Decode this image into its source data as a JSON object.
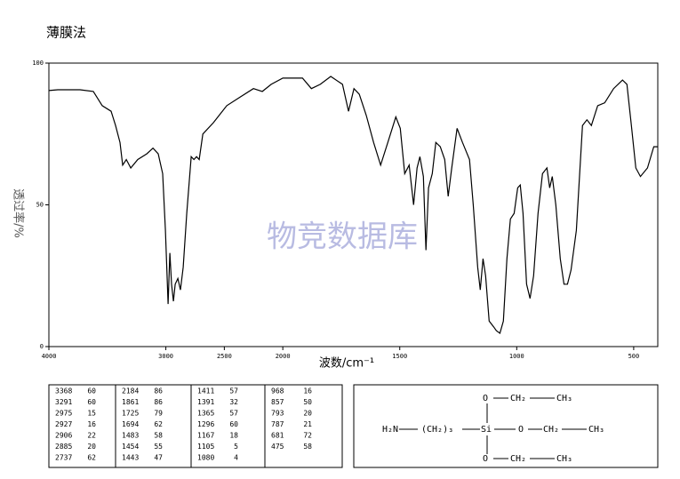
{
  "chart_data": {
    "type": "line",
    "title": "薄膜法",
    "watermark": "物竞数据库",
    "xlabel": "波数/cm⁻¹",
    "ylabel": "透过率/%",
    "xlim": [
      4000,
      397
    ],
    "xticks": [
      4000,
      3000,
      2500,
      2000,
      1500,
      1000,
      500
    ],
    "xaxis_scale_change": 2000,
    "ylim": [
      0,
      100
    ],
    "yticks": [
      0,
      50,
      100
    ],
    "color": "#000000",
    "x": [
      4000,
      3924,
      3734,
      3620,
      3544,
      3468,
      3430,
      3392,
      3369,
      3338,
      3300,
      3240,
      3163,
      3110,
      3065,
      3027,
      3004,
      2981,
      2966,
      2951,
      2935,
      2920,
      2897,
      2875,
      2852,
      2821,
      2783,
      2760,
      2738,
      2715,
      2684,
      2593,
      2479,
      2365,
      2251,
      2175,
      2099,
      2000,
      1916,
      1878,
      1840,
      1795,
      1745,
      1719,
      1696,
      1673,
      1643,
      1612,
      1582,
      1551,
      1517,
      1498,
      1479,
      1460,
      1441,
      1426,
      1414,
      1399,
      1388,
      1377,
      1361,
      1346,
      1327,
      1308,
      1293,
      1278,
      1255,
      1232,
      1202,
      1186,
      1167,
      1156,
      1144,
      1133,
      1118,
      1099,
      1087,
      1072,
      1057,
      1042,
      1027,
      1011,
      996,
      985,
      973,
      958,
      943,
      928,
      909,
      890,
      871,
      859,
      848,
      833,
      814,
      798,
      783,
      768,
      745,
      719,
      700,
      681,
      654,
      624,
      586,
      548,
      529,
      510,
      491,
      471,
      441,
      414,
      397
    ],
    "values": [
      90.3,
      90.6,
      90.6,
      90,
      85,
      83,
      78,
      72,
      64,
      66,
      63,
      66,
      68,
      70,
      68,
      61,
      41,
      15,
      33,
      22,
      16,
      22,
      24,
      20,
      28,
      47,
      67,
      66,
      67,
      66,
      75,
      79,
      85,
      88,
      91,
      90,
      92.5,
      94.7,
      94.7,
      91,
      92.5,
      95.3,
      92.5,
      83,
      91,
      89,
      81.5,
      72,
      64,
      72,
      81,
      77,
      61,
      64,
      50,
      63,
      67,
      60,
      34,
      56,
      61,
      72,
      70.5,
      66,
      53,
      63,
      77,
      72,
      66,
      50,
      28,
      20,
      31,
      25,
      9,
      7,
      5.6,
      4.7,
      9,
      31,
      45,
      47,
      56,
      57,
      47,
      22,
      17,
      25,
      47,
      61,
      63,
      56,
      60,
      50,
      31,
      22,
      22,
      27,
      41,
      78,
      80,
      78,
      85,
      86,
      91,
      94,
      92.5,
      78,
      63,
      60,
      63,
      70.5,
      70.5
    ]
  },
  "peak_table": {
    "columns": [
      [
        [
          3368,
          60
        ],
        [
          3291,
          60
        ],
        [
          2975,
          15
        ],
        [
          2927,
          16
        ],
        [
          2906,
          22
        ],
        [
          2885,
          20
        ],
        [
          2737,
          62
        ]
      ],
      [
        [
          2184,
          86
        ],
        [
          1861,
          86
        ],
        [
          1725,
          79
        ],
        [
          1694,
          62
        ],
        [
          1483,
          58
        ],
        [
          1454,
          55
        ],
        [
          1443,
          47
        ]
      ],
      [
        [
          1411,
          57
        ],
        [
          1391,
          32
        ],
        [
          1365,
          57
        ],
        [
          1296,
          60
        ],
        [
          1167,
          18
        ],
        [
          1105,
          5
        ],
        [
          1080,
          4
        ]
      ],
      [
        [
          968,
          16
        ],
        [
          857,
          50
        ],
        [
          793,
          20
        ],
        [
          787,
          21
        ],
        [
          681,
          72
        ],
        [
          475,
          58
        ]
      ]
    ]
  },
  "structure": {
    "atoms": [
      "H₂N",
      "(CH₂)₃",
      "Si",
      "O",
      "CH₂",
      "CH₃",
      "O",
      "CH₂",
      "CH₃",
      "O",
      "CH₂",
      "CH₃"
    ]
  }
}
